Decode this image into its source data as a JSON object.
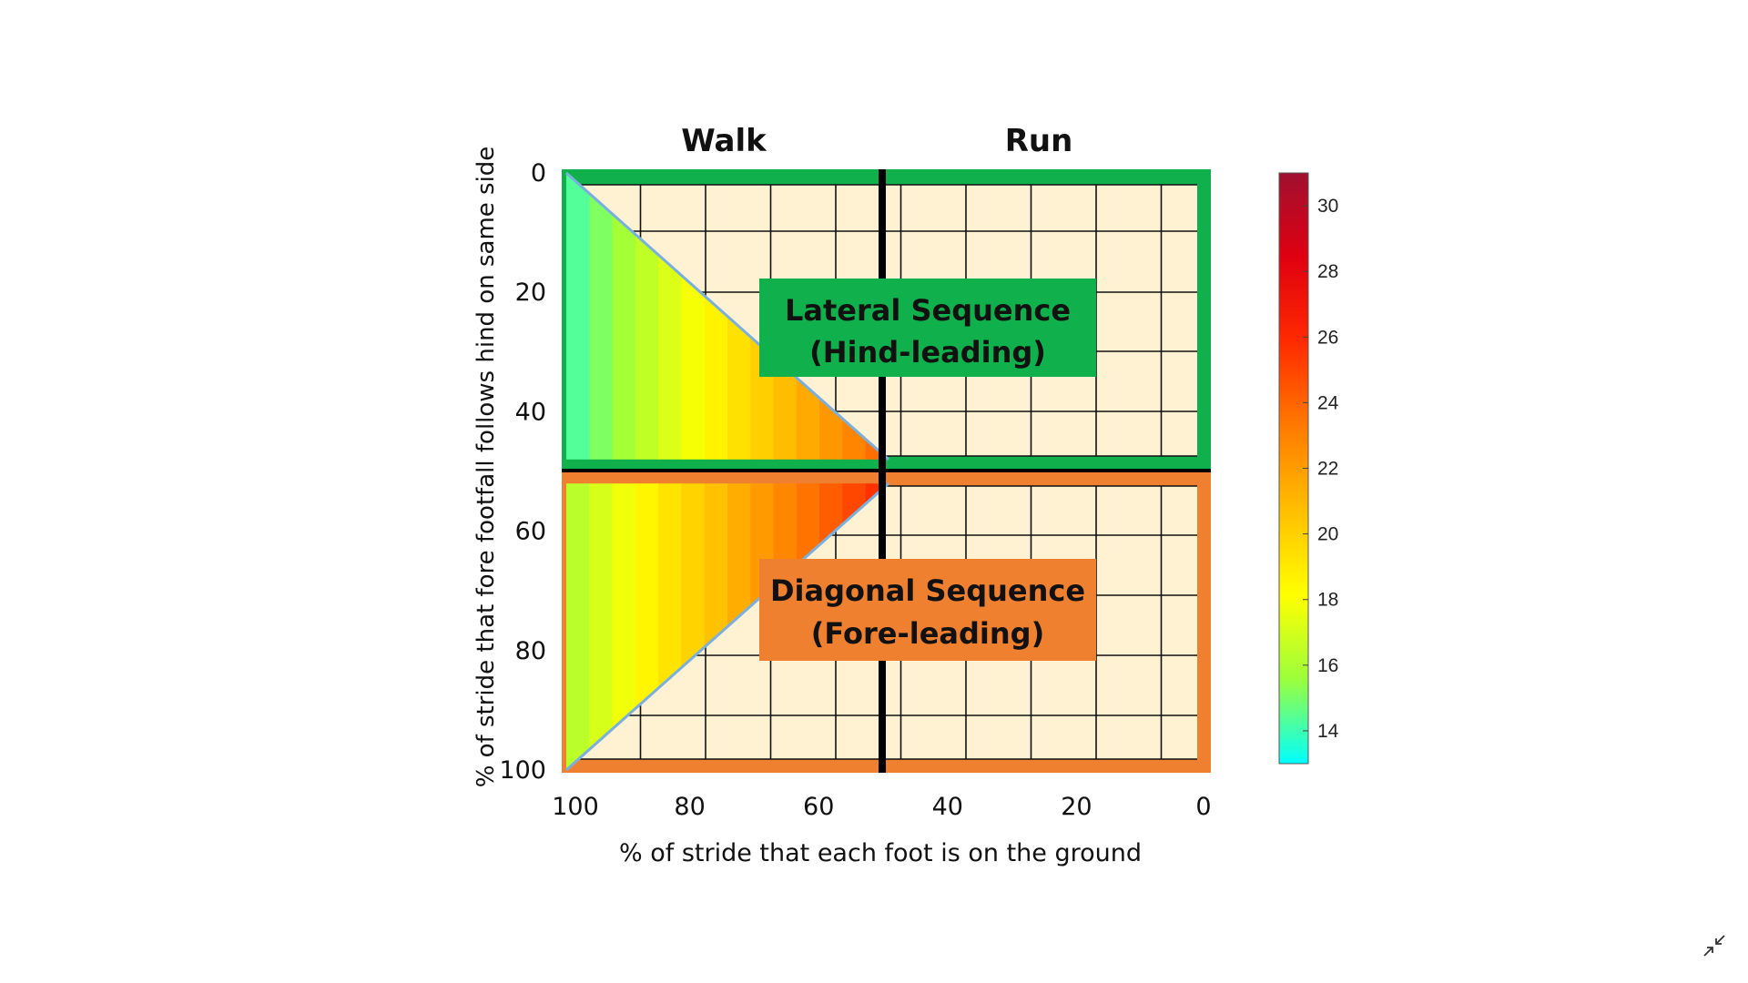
{
  "chart_data": {
    "type": "heatmap",
    "title": "",
    "column_headers": [
      "Walk",
      "Run"
    ],
    "xlabel": "% of stride that each foot is on the ground",
    "ylabel": "% of stride that fore footfall follows hind on same side",
    "xlim": [
      100,
      0
    ],
    "ylim": [
      0,
      100
    ],
    "x_ticks": [
      "100",
      "80",
      "60",
      "40",
      "20",
      "0"
    ],
    "y_ticks": [
      "0",
      "20",
      "40",
      "60",
      "80",
      "100"
    ],
    "x_tick_values": [
      100,
      80,
      60,
      40,
      20,
      0
    ],
    "y_tick_values": [
      0,
      20,
      40,
      60,
      80,
      100
    ],
    "walk_run_boundary_x": 50,
    "sequence_boundary_y": 50,
    "regions": [
      {
        "label_line1": "Lateral Sequence",
        "label_line2": "(Hind-leading)",
        "y_range": [
          0,
          50
        ],
        "border_color": "#10b04c"
      },
      {
        "label_line1": "Diagonal Sequence",
        "label_line2": "(Fore-leading)",
        "y_range": [
          50,
          100
        ],
        "border_color": "#ee8030"
      }
    ],
    "heat_triangles": [
      {
        "vertices": [
          [
            100,
            0
          ],
          [
            100,
            48
          ],
          [
            50,
            48
          ]
        ],
        "value_range": [
          14,
          24
        ]
      },
      {
        "vertices": [
          [
            100,
            52
          ],
          [
            100,
            100
          ],
          [
            50,
            52
          ]
        ],
        "value_range": [
          16,
          26
        ]
      }
    ],
    "colorbar": {
      "min": 13,
      "max": 31,
      "ticks": [
        "14",
        "16",
        "18",
        "20",
        "22",
        "24",
        "26",
        "28",
        "30"
      ],
      "tick_values": [
        14,
        16,
        18,
        20,
        22,
        24,
        26,
        28,
        30
      ],
      "colormap": [
        "#00ffff",
        "#9cff3c",
        "#ffff00",
        "#ffbf00",
        "#ff7a00",
        "#ff2a00",
        "#e00010",
        "#a01030"
      ]
    },
    "grid": true,
    "grid_background": "#fff2d2"
  },
  "icons": {
    "exit_fullscreen": "minimize-arrows-icon"
  }
}
